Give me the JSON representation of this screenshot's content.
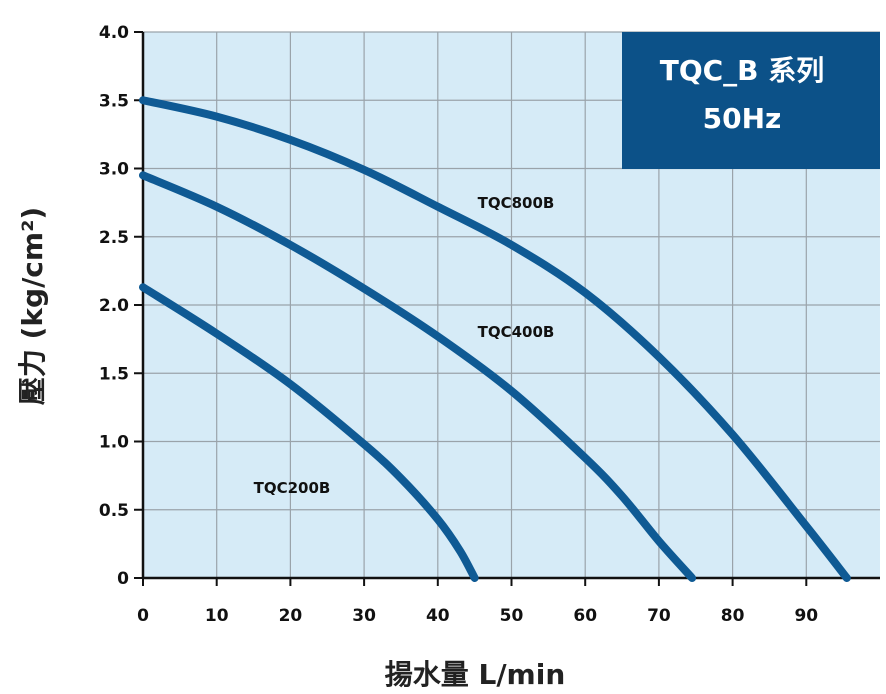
{
  "chart_data": {
    "type": "line",
    "title_box": {
      "line1": "TQC_B 系列",
      "line2": "50Hz",
      "color": "#0c5188"
    },
    "xlabel": "揚水量 L/min",
    "ylabel": "壓力 (kg/cm²)",
    "xlim": [
      0,
      100
    ],
    "ylim": [
      0,
      4.0
    ],
    "xticks": [
      "0",
      "10",
      "20",
      "30",
      "40",
      "50",
      "60",
      "70",
      "80",
      "90"
    ],
    "yticks": [
      "0",
      "0.5",
      "1.0",
      "1.5",
      "2.0",
      "2.5",
      "3.0",
      "3.5",
      "4.0"
    ],
    "grid": true,
    "plot_background": "#d6ebf7",
    "grid_color": "#9aa3aa",
    "line_color": "#0f5a94",
    "series": [
      {
        "name": "TQC800B",
        "x": [
          0,
          10,
          20,
          30,
          40,
          50,
          60,
          70,
          80,
          90,
          95.5
        ],
        "y": [
          3.5,
          3.38,
          3.21,
          2.99,
          2.72,
          2.44,
          2.09,
          1.62,
          1.05,
          0.38,
          0
        ]
      },
      {
        "name": "TQC400B",
        "x": [
          0,
          10,
          20,
          30,
          40,
          50,
          60,
          65,
          70,
          74.5
        ],
        "y": [
          2.95,
          2.72,
          2.44,
          2.12,
          1.77,
          1.37,
          0.88,
          0.6,
          0.27,
          0
        ]
      },
      {
        "name": "TQC200B",
        "x": [
          0,
          10,
          20,
          30,
          35,
          40,
          43,
          45
        ],
        "y": [
          2.13,
          1.79,
          1.42,
          0.98,
          0.73,
          0.43,
          0.2,
          0
        ]
      }
    ]
  }
}
